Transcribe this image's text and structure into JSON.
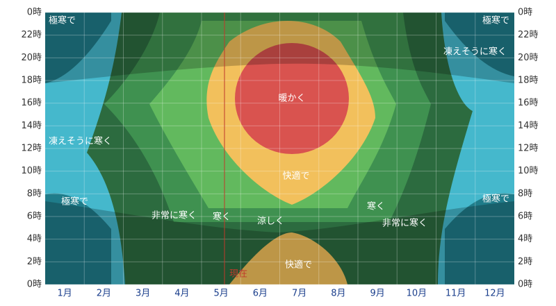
{
  "chart_data": {
    "type": "contour",
    "categories": [
      "1月",
      "2月",
      "3月",
      "4月",
      "5月",
      "6月",
      "7月",
      "8月",
      "9月",
      "10月",
      "11月",
      "12月"
    ],
    "ylim": [
      0,
      24
    ],
    "yticks": [
      {
        "value": 0,
        "label": "0時"
      },
      {
        "value": 2,
        "label": "2時"
      },
      {
        "value": 4,
        "label": "4時"
      },
      {
        "value": 6,
        "label": "6時"
      },
      {
        "value": 8,
        "label": "8時"
      },
      {
        "value": 10,
        "label": "10時"
      },
      {
        "value": 12,
        "label": "12時"
      },
      {
        "value": 14,
        "label": "14時"
      },
      {
        "value": 16,
        "label": "16時"
      },
      {
        "value": 18,
        "label": "18時"
      },
      {
        "value": 20,
        "label": "20時"
      },
      {
        "value": 22,
        "label": "22時"
      },
      {
        "value": 24,
        "label": "0時"
      }
    ],
    "grid": true,
    "annotations": [
      "極寒で",
      "極寒で",
      "凍えそうに寒く",
      "暖かく",
      "凍えそうに寒く",
      "快適で",
      "極寒で",
      "極寒で",
      "非常に寒く",
      "寒く",
      "涼しく",
      "寒く",
      "非常に寒く",
      "快適で"
    ],
    "now_label": "現在"
  }
}
